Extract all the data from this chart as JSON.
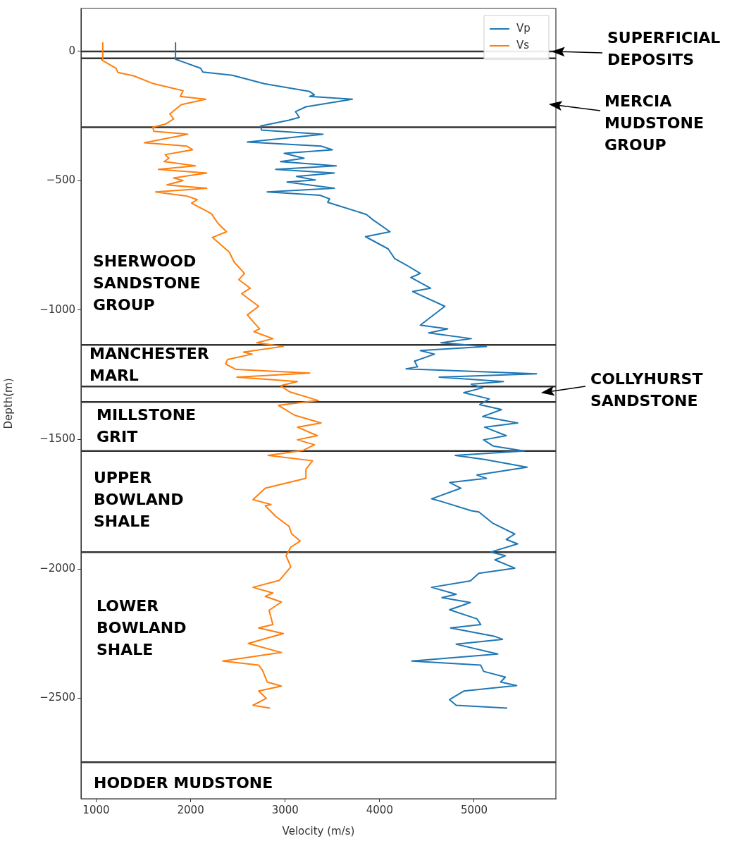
{
  "chart_data": {
    "type": "line",
    "xlabel": "Velocity (m/s)",
    "ylabel": "Depth(m)",
    "xlim": [
      840,
      5865
    ],
    "ylim": [
      -2888,
      166
    ],
    "xticks": [
      1000,
      2000,
      3000,
      4000,
      5000
    ],
    "yticks": [
      0,
      -500,
      -1000,
      -1500,
      -2000,
      -2500
    ],
    "legend": "top right",
    "marker": "none",
    "series": [
      {
        "name": "Vp",
        "color": "#1f77b4",
        "x": [
          1840,
          1840,
          2105,
          2130,
          2440,
          2780,
          3260,
          3310,
          3260,
          3710,
          3220,
          3110,
          3150,
          3040,
          2740,
          2750,
          3400,
          2600,
          3380,
          3500,
          2990,
          3200,
          2950,
          3540,
          2900,
          3520,
          3120,
          3320,
          3020,
          3520,
          2810,
          3370,
          3470,
          3450,
          3860,
          3930,
          4110,
          3850,
          4090,
          4160,
          4280,
          4430,
          4330,
          4540,
          4350,
          4690,
          4430,
          4720,
          4520,
          4970,
          4650,
          5130,
          4430,
          4580,
          4370,
          4400,
          4280,
          5660,
          4630,
          5310,
          4970,
          5090,
          4890,
          5160,
          5060,
          5290,
          5090,
          5460,
          5110,
          5340,
          5100,
          5200,
          5530,
          4800,
          5110,
          5560,
          5030,
          5130,
          4740,
          4860,
          4550,
          4660,
          4970,
          5050,
          5200,
          5430,
          5340,
          5460,
          5200,
          5180,
          5330,
          5220,
          5430,
          5050,
          4960,
          4550,
          4810,
          4660,
          4960,
          4740,
          5030,
          5070,
          4750,
          5220,
          5300,
          4810,
          5250,
          4340,
          5070,
          5100,
          5330,
          5280,
          5450,
          4890,
          4740,
          4810,
          5350
        ],
        "values": [
          33,
          -30,
          -65,
          -80,
          -92,
          -125,
          -155,
          -168,
          -174,
          -185,
          -214,
          -233,
          -255,
          -266,
          -288,
          -304,
          -320,
          -350,
          -366,
          -380,
          -394,
          -413,
          -426,
          -442,
          -456,
          -470,
          -483,
          -497,
          -505,
          -529,
          -543,
          -556,
          -570,
          -583,
          -630,
          -651,
          -697,
          -716,
          -763,
          -801,
          -825,
          -858,
          -874,
          -915,
          -928,
          -985,
          -1058,
          -1072,
          -1088,
          -1110,
          -1126,
          -1140,
          -1156,
          -1170,
          -1197,
          -1219,
          -1227,
          -1246,
          -1259,
          -1276,
          -1286,
          -1300,
          -1319,
          -1343,
          -1365,
          -1384,
          -1411,
          -1436,
          -1452,
          -1485,
          -1501,
          -1525,
          -1544,
          -1561,
          -1577,
          -1607,
          -1637,
          -1650,
          -1666,
          -1688,
          -1729,
          -1740,
          -1775,
          -1780,
          -1824,
          -1865,
          -1886,
          -1903,
          -1932,
          -1935,
          -1949,
          -1965,
          -1997,
          -2017,
          -2046,
          -2071,
          -2098,
          -2111,
          -2130,
          -2158,
          -2193,
          -2215,
          -2228,
          -2261,
          -2272,
          -2291,
          -2329,
          -2356,
          -2372,
          -2396,
          -2418,
          -2437,
          -2451,
          -2472,
          -2505,
          -2527,
          -2538
        ]
      },
      {
        "name": "Vs",
        "color": "#ff7f0e",
        "x": [
          1070,
          1070,
          1060,
          1210,
          1230,
          1400,
          1610,
          1920,
          1890,
          2160,
          1900,
          1780,
          1820,
          1740,
          1600,
          1610,
          1970,
          1510,
          1960,
          2020,
          1730,
          1770,
          1720,
          2050,
          1660,
          2170,
          1820,
          1920,
          1750,
          2170,
          1630,
          1960,
          2070,
          2010,
          2220,
          2290,
          2380,
          2230,
          2410,
          2460,
          2570,
          2510,
          2630,
          2540,
          2720,
          2600,
          2670,
          2730,
          2670,
          2870,
          2700,
          2980,
          2560,
          2650,
          2390,
          2370,
          2480,
          3260,
          2490,
          3130,
          2950,
          3050,
          3350,
          2930,
          3100,
          3380,
          3130,
          3340,
          3130,
          3310,
          3190,
          2820,
          3290,
          3220,
          3220,
          2790,
          2660,
          2850,
          2790,
          2900,
          3040,
          3070,
          3160,
          3060,
          3010,
          3060,
          2940,
          2660,
          2870,
          2790,
          2960,
          2830,
          2870,
          2720,
          2980,
          2610,
          2960,
          2340,
          2720,
          2760,
          2810,
          2960,
          2720,
          2800,
          2660,
          2840
        ],
        "values": [
          33,
          -30,
          -33,
          -65,
          -81,
          -95,
          -125,
          -152,
          -174,
          -185,
          -206,
          -242,
          -261,
          -280,
          -293,
          -309,
          -320,
          -353,
          -366,
          -380,
          -399,
          -413,
          -426,
          -442,
          -456,
          -470,
          -489,
          -499,
          -516,
          -529,
          -543,
          -559,
          -573,
          -586,
          -627,
          -665,
          -697,
          -719,
          -776,
          -814,
          -858,
          -882,
          -915,
          -936,
          -985,
          -1018,
          -1048,
          -1072,
          -1083,
          -1110,
          -1126,
          -1140,
          -1162,
          -1170,
          -1191,
          -1208,
          -1229,
          -1243,
          -1259,
          -1276,
          -1292,
          -1316,
          -1349,
          -1368,
          -1406,
          -1436,
          -1452,
          -1485,
          -1501,
          -1520,
          -1542,
          -1561,
          -1582,
          -1615,
          -1650,
          -1688,
          -1732,
          -1751,
          -1756,
          -1797,
          -1835,
          -1865,
          -1892,
          -1916,
          -1949,
          -1992,
          -2044,
          -2071,
          -2093,
          -2106,
          -2128,
          -2160,
          -2215,
          -2228,
          -2250,
          -2288,
          -2323,
          -2356,
          -2372,
          -2391,
          -2437,
          -2453,
          -2472,
          -2500,
          -2527,
          -2538
        ]
      }
    ],
    "ref_lines": [
      {
        "axis": "y",
        "value": 0,
        "color": "#333333"
      },
      {
        "axis": "y",
        "value": -27,
        "color": "#333333"
      },
      {
        "axis": "y",
        "value": -293,
        "color": "#333333"
      },
      {
        "axis": "y",
        "value": -1134,
        "color": "#333333"
      },
      {
        "axis": "y",
        "value": -1295,
        "color": "#333333"
      },
      {
        "axis": "y",
        "value": -1355,
        "color": "#333333"
      },
      {
        "axis": "y",
        "value": -1544,
        "color": "#333333"
      },
      {
        "axis": "y",
        "value": -1935,
        "color": "#333333"
      },
      {
        "axis": "y",
        "value": -2747,
        "color": "#333333"
      }
    ],
    "annotations": [
      "SUPERFICIAL DEPOSITS",
      "MERCIA MUDSTONE GROUP",
      "SHERWOOD SANDSTONE GROUP",
      "MANCHESTER MARL",
      "COLLYHURST SANDSTONE",
      "MILLSTONE GRIT",
      "UPPER BOWLAND SHALE",
      "LOWER BOWLAND SHALE",
      "HODDER MUDSTONE"
    ]
  }
}
